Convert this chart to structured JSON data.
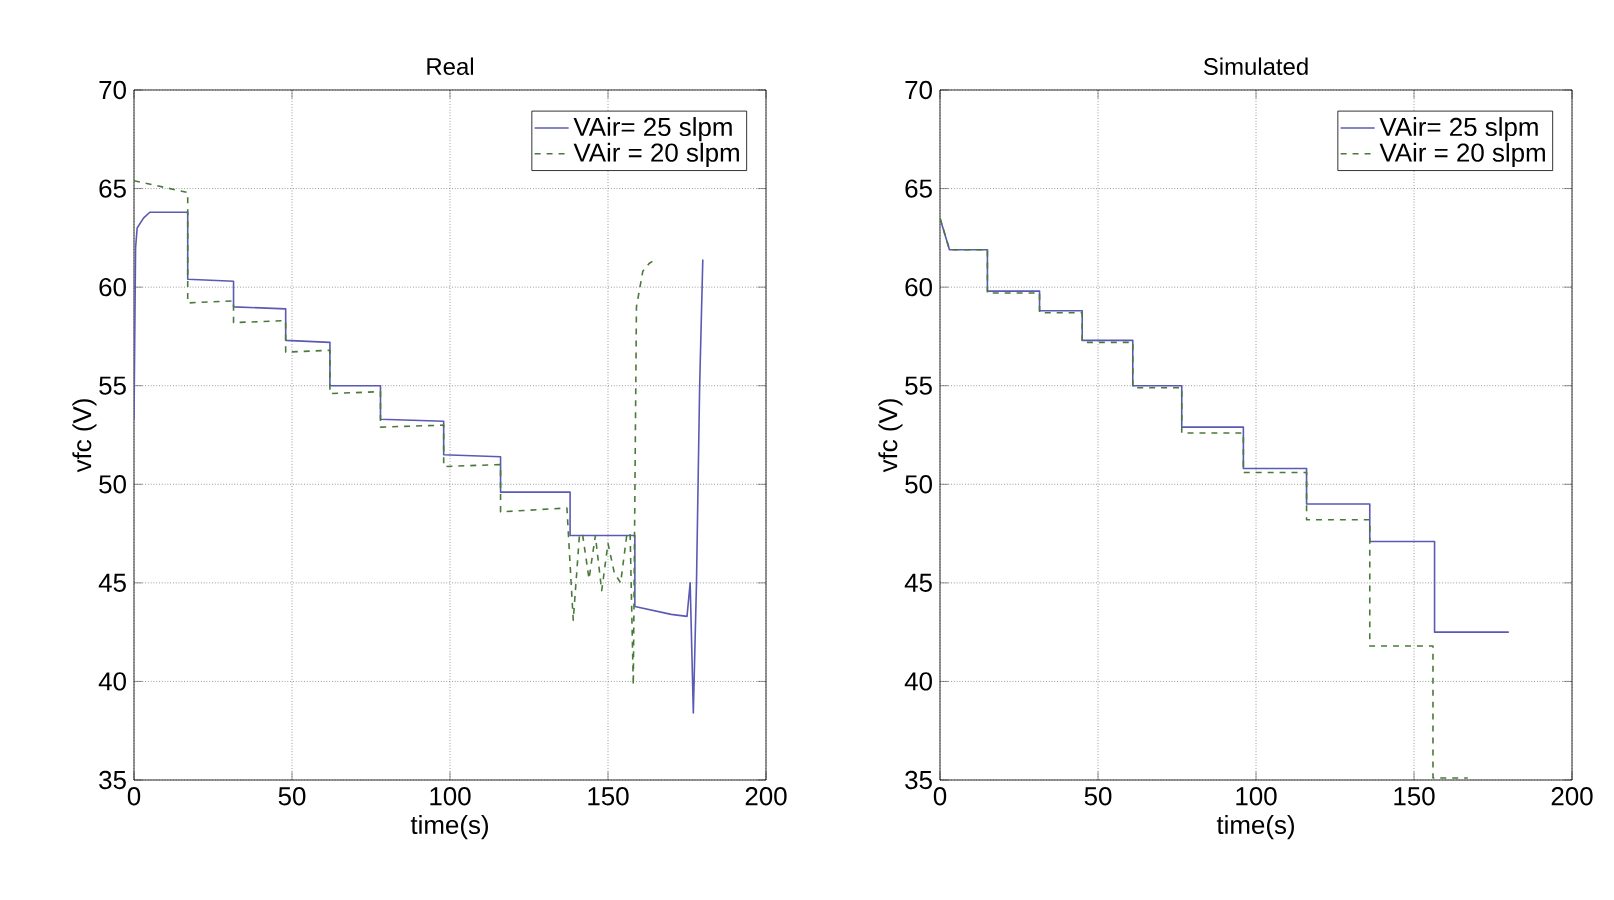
{
  "chart_data": [
    {
      "type": "line",
      "title": "Real",
      "xlabel": "time(s)",
      "ylabel": "vfc (V)",
      "xlim": [
        0,
        200
      ],
      "ylim": [
        35,
        70
      ],
      "xticks": [
        0,
        50,
        100,
        150,
        200
      ],
      "yticks": [
        35,
        40,
        45,
        50,
        55,
        60,
        65,
        70
      ],
      "grid": true,
      "legend": "top right",
      "series": [
        {
          "name": "VAir= 25 slpm",
          "color": "#5a5ab4",
          "line_style": "solid",
          "x": [
            0,
            0.5,
            1,
            3,
            5,
            17,
            17,
            31.5,
            31.5,
            48,
            48,
            62,
            62,
            78,
            78,
            98,
            98,
            116,
            116,
            138,
            138,
            158.5,
            158.5,
            170,
            175,
            176,
            177,
            178,
            179,
            180
          ],
          "values": [
            53.3,
            62,
            63,
            63.5,
            63.8,
            63.8,
            60.4,
            60.3,
            59.0,
            58.9,
            57.3,
            57.2,
            55.0,
            55.0,
            53.3,
            53.2,
            51.5,
            51.4,
            49.6,
            49.6,
            47.4,
            47.4,
            43.8,
            43.4,
            43.3,
            45,
            38.4,
            45,
            55,
            61.4
          ]
        },
        {
          "name": "VAir = 20 slpm",
          "color": "#4a7a3a",
          "line_style": "dashed",
          "x": [
            0,
            17,
            17,
            31.5,
            31.5,
            48,
            48,
            62,
            62,
            78,
            78,
            98,
            98,
            116,
            116,
            137,
            139,
            141,
            142,
            144,
            146,
            148,
            150,
            152,
            154,
            156,
            157,
            158,
            159,
            161,
            163,
            165
          ],
          "values": [
            65.4,
            64.8,
            59.2,
            59.3,
            58.2,
            58.3,
            56.7,
            56.8,
            54.6,
            54.7,
            52.9,
            53.0,
            50.9,
            51.0,
            48.6,
            48.8,
            43.1,
            47.5,
            47.4,
            45.2,
            47.4,
            44.6,
            47.0,
            45.5,
            45.0,
            47.5,
            47.5,
            39.8,
            59.0,
            60.8,
            61.2,
            61.4
          ]
        }
      ]
    },
    {
      "type": "line",
      "title": "Simulated",
      "xlabel": "time(s)",
      "ylabel": "vfc (V)",
      "xlim": [
        0,
        200
      ],
      "ylim": [
        35,
        70
      ],
      "xticks": [
        0,
        50,
        100,
        150,
        200
      ],
      "yticks": [
        35,
        40,
        45,
        50,
        55,
        60,
        65,
        70
      ],
      "grid": true,
      "legend": "top right",
      "series": [
        {
          "name": "VAir= 25 slpm",
          "color": "#5a5ab4",
          "line_style": "solid",
          "x": [
            0,
            3,
            15,
            15,
            31.5,
            31.5,
            45,
            45,
            61,
            61,
            76.5,
            76.5,
            96,
            96,
            116,
            116,
            136,
            136,
            156.5,
            156.5,
            180
          ],
          "values": [
            63.5,
            61.9,
            61.9,
            59.8,
            59.8,
            58.8,
            58.8,
            57.3,
            57.3,
            55.0,
            55.0,
            52.9,
            52.9,
            50.8,
            50.8,
            49.0,
            49.0,
            47.1,
            47.1,
            42.5,
            42.5
          ]
        },
        {
          "name": "VAir = 20 slpm",
          "color": "#4a7a3a",
          "line_style": "dashed",
          "x": [
            0,
            3,
            15,
            15,
            31.5,
            31.5,
            45,
            45,
            61,
            61,
            76.5,
            76.5,
            96,
            96,
            116,
            116,
            136,
            136,
            156,
            156,
            167
          ],
          "values": [
            63.5,
            61.9,
            61.9,
            59.7,
            59.7,
            58.7,
            58.7,
            57.2,
            57.2,
            54.9,
            54.9,
            52.6,
            52.6,
            50.6,
            50.6,
            48.2,
            48.2,
            41.8,
            41.8,
            35.1,
            35.1
          ]
        }
      ]
    }
  ]
}
